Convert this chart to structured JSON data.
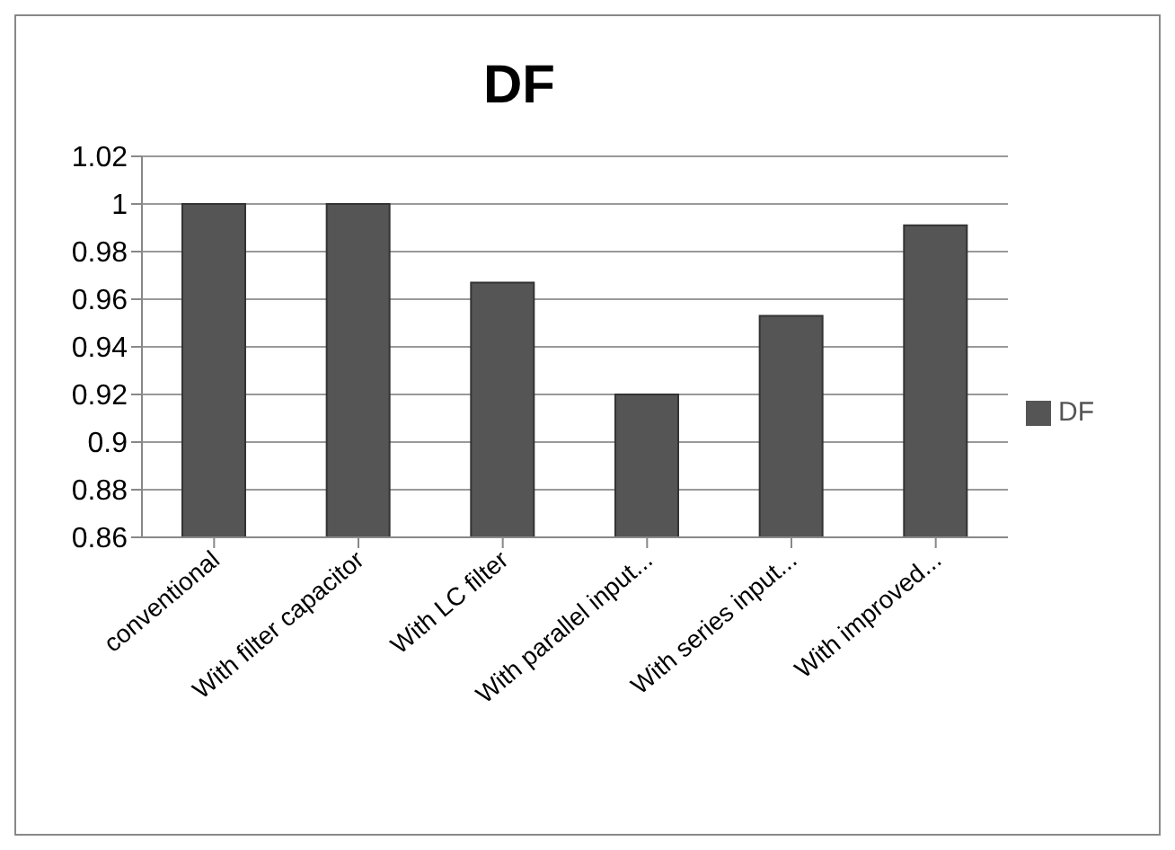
{
  "chart_data": {
    "type": "bar",
    "title": "DF",
    "categories": [
      "conventional",
      "With filter capacitor",
      "With LC filter",
      "With parallel input...",
      "With series input...",
      "With improved..."
    ],
    "series": [
      {
        "name": "DF",
        "color": "#555555",
        "values": [
          1.0,
          1.0,
          0.967,
          0.92,
          0.953,
          0.991
        ]
      }
    ],
    "ylim": [
      0.86,
      1.02
    ],
    "yticks": [
      0.86,
      0.88,
      {
        "value": 0.9,
        "label": "0.9"
      },
      0.92,
      0.94,
      0.96,
      0.98,
      {
        "value": 1,
        "label": "1"
      },
      1.02
    ],
    "grid": "y",
    "legend": "right"
  }
}
